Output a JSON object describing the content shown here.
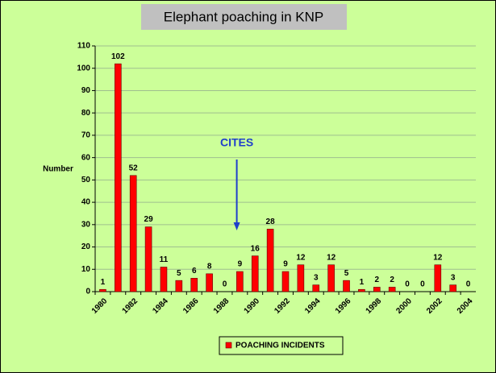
{
  "chart_data": {
    "type": "bar",
    "title": "Elephant poaching in KNP",
    "y_label": "Number",
    "categories": [
      "1980",
      null,
      "1982",
      null,
      "1984",
      null,
      "1986",
      null,
      "1988",
      null,
      "1990",
      null,
      "1992",
      null,
      "1994",
      null,
      "1996",
      null,
      "1998",
      null,
      "2000",
      null,
      "2002",
      null,
      "2004"
    ],
    "series": [
      {
        "name": "POACHING INCIDENTS",
        "color": "#ff0000",
        "values": [
          1,
          102,
          52,
          29,
          11,
          5,
          6,
          8,
          0,
          9,
          16,
          28,
          9,
          12,
          3,
          12,
          5,
          1,
          2,
          2,
          0,
          0,
          12,
          3,
          0
        ]
      }
    ],
    "ylim": [
      0,
      110
    ],
    "yticks": [
      0,
      10,
      20,
      30,
      40,
      50,
      60,
      70,
      80,
      90,
      100,
      110
    ],
    "grid": true,
    "annotations": [
      {
        "text": "CITES"
      }
    ],
    "legend": "bottom"
  }
}
